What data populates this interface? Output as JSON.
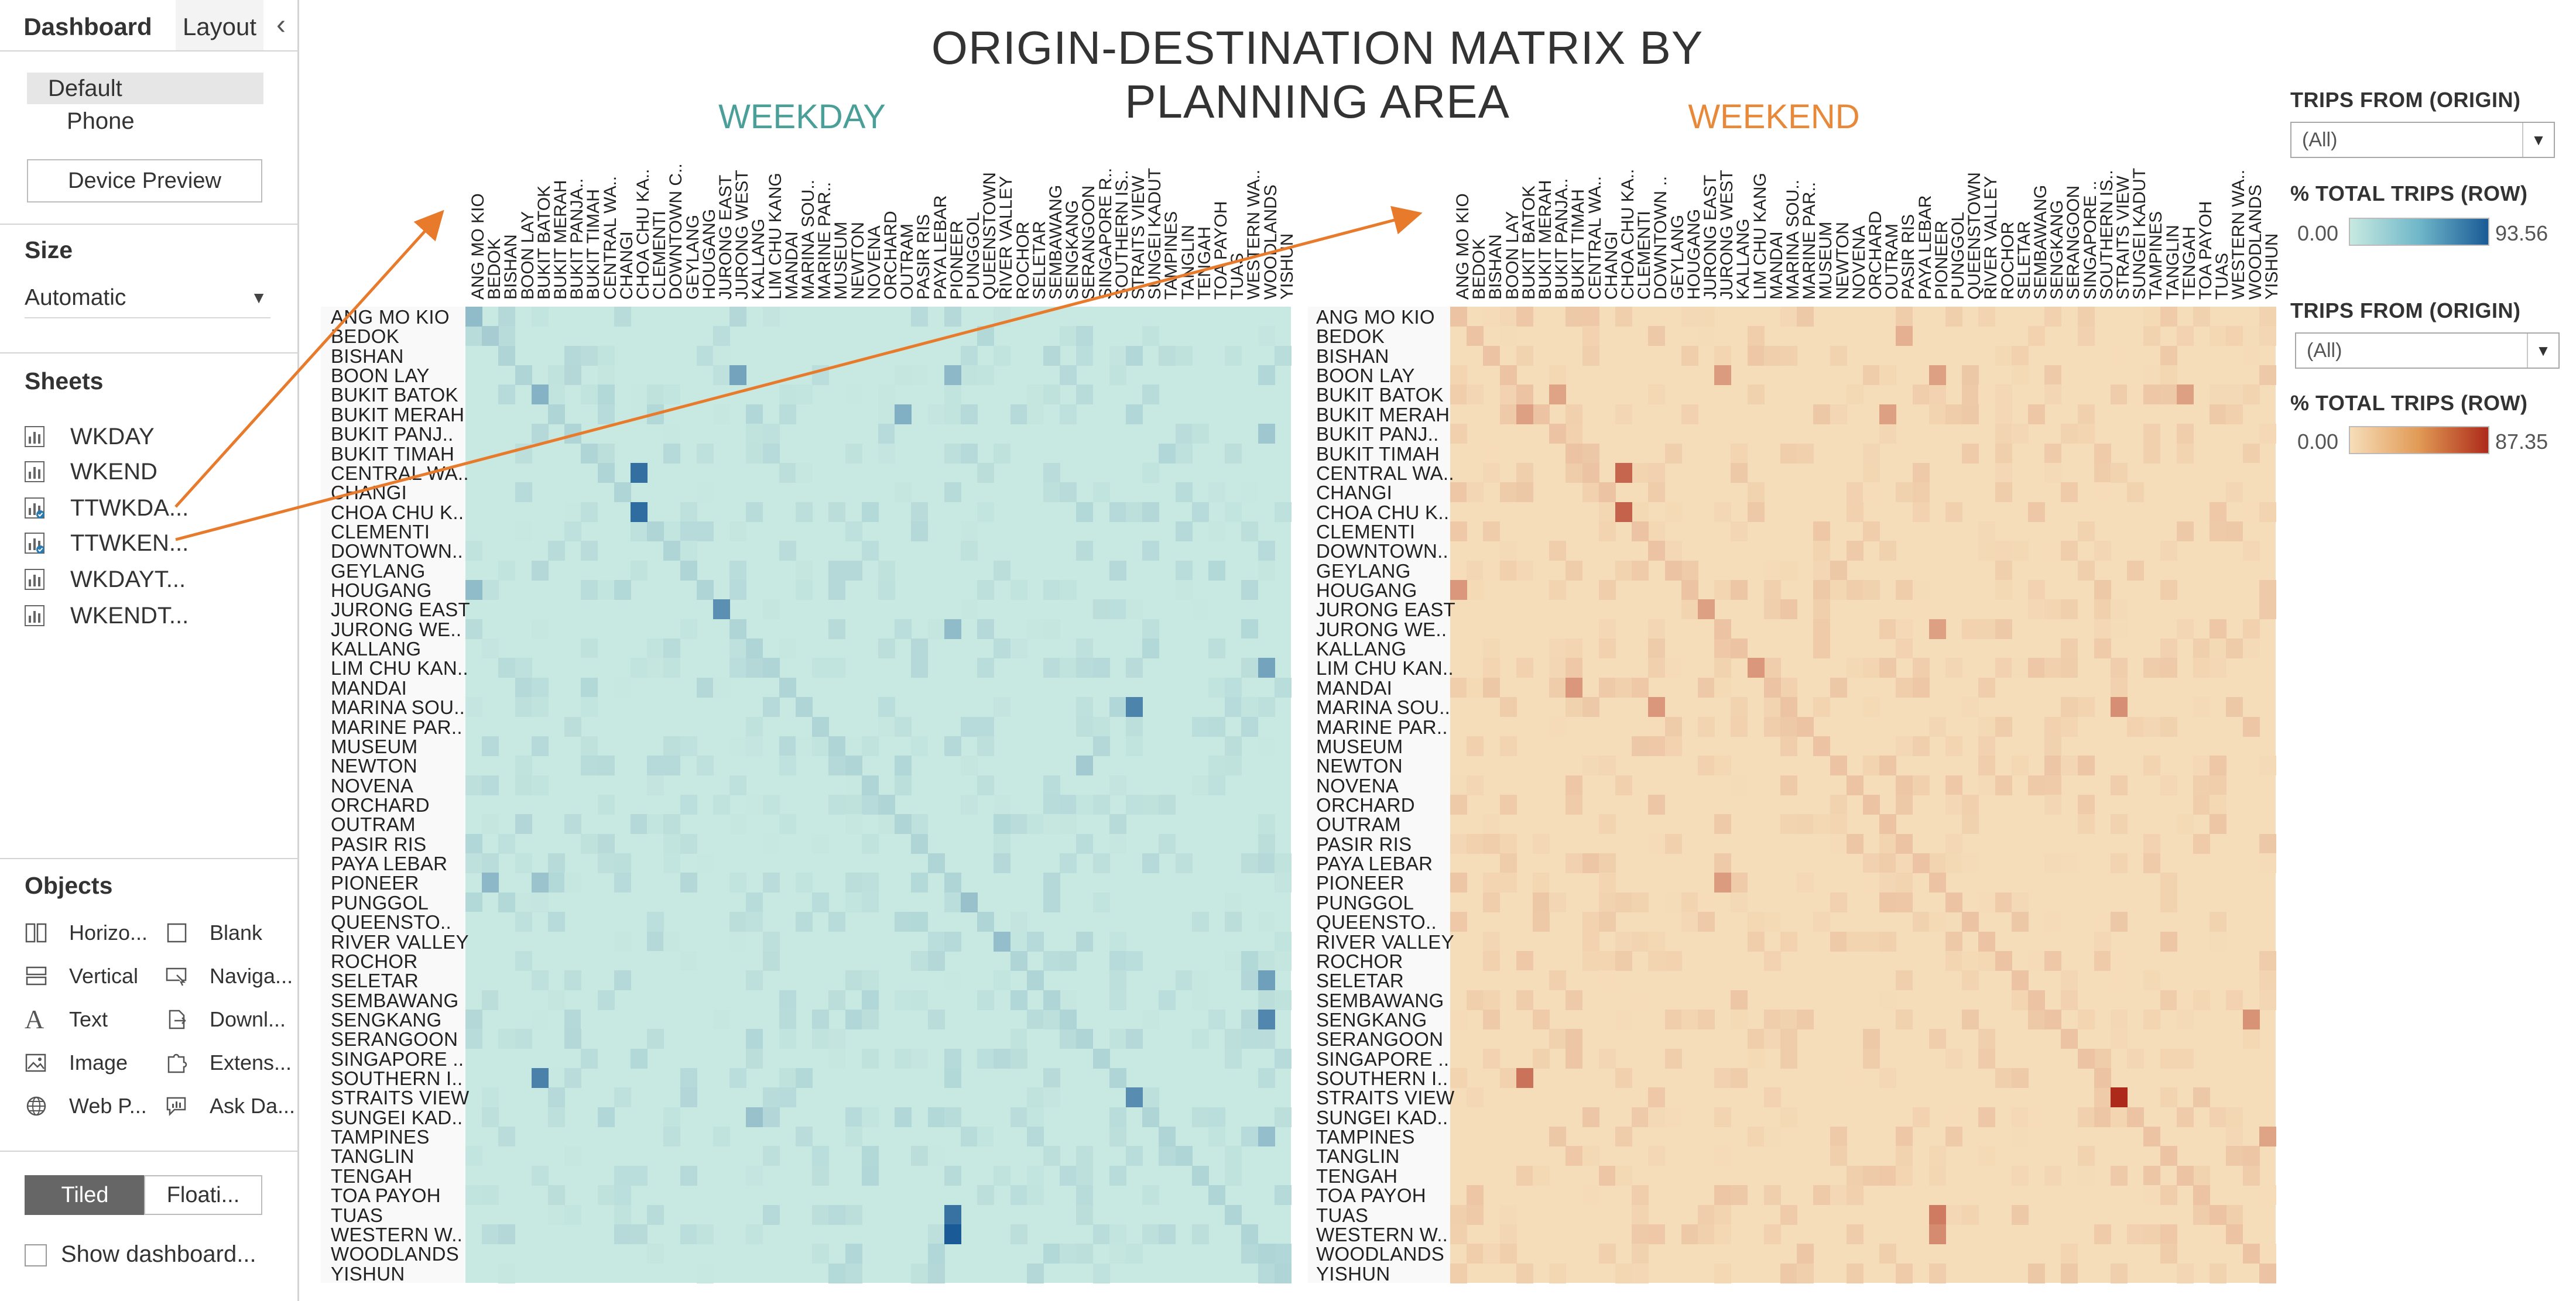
{
  "side_pane": {
    "tabs": {
      "dashboard": "Dashboard",
      "layout": "Layout"
    },
    "device": {
      "default": "Default",
      "phone": "Phone",
      "preview_button": "Device Preview"
    },
    "size": {
      "title": "Size",
      "value": "Automatic"
    },
    "sheets": {
      "title": "Sheets",
      "items": [
        "WKDAY",
        "WKEND",
        "TTWKDA...",
        "TTWKEN...",
        "WKDAYT...",
        "WKENDT..."
      ]
    },
    "objects": {
      "title": "Objects",
      "items": [
        "Horizo...",
        "Blank",
        "Vertical",
        "Naviga...",
        "Text",
        "Downl...",
        "Image",
        "Extens...",
        "Web P...",
        "Ask Da..."
      ]
    },
    "layout_buttons": {
      "tiled": "Tiled",
      "floating": "Floati..."
    },
    "show_title": "Show dashboard..."
  },
  "dashboard": {
    "title": "ORIGIN-DESTINATION MATRIX BY PLANNING AREA",
    "weekday_title": "WEEKDAY",
    "weekend_title": "WEEKEND"
  },
  "legend": {
    "weekday_filter_title": "TRIPS FROM (ORIGIN)",
    "weekday_filter_value": "(All)",
    "weekday_color_title": "% TOTAL TRIPS (ROW)",
    "weekday_min": "0.00",
    "weekday_max": "93.56",
    "weekend_filter_title": "TRIPS FROM (ORIGIN)",
    "weekend_filter_value": "(All)",
    "weekend_color_title": "% TOTAL TRIPS (ROW)",
    "weekend_min": "0.00",
    "weekend_max": "87.35"
  },
  "colors": {
    "weekday_low": "#c8e9e1",
    "weekday_high": "#1a5a96",
    "weekend_low": "#f6ddb9",
    "weekend_high": "#ad2a1a",
    "arrow": "#e87a2c"
  },
  "chart_data": [
    {
      "type": "heatmap",
      "title": "WEEKDAY",
      "rows": [
        "ANG MO KIO",
        "BEDOK",
        "BISHAN",
        "BOON LAY",
        "BUKIT BATOK",
        "BUKIT MERAH",
        "BUKIT PANJ..",
        "BUKIT TIMAH",
        "CENTRAL WA..",
        "CHANGI",
        "CHOA CHU K..",
        "CLEMENTI",
        "DOWNTOWN..",
        "GEYLANG",
        "HOUGANG",
        "JURONG EAST",
        "JURONG WE..",
        "KALLANG",
        "LIM CHU KAN..",
        "MANDAI",
        "MARINA SOU..",
        "MARINE PAR..",
        "MUSEUM",
        "NEWTON",
        "NOVENA",
        "ORCHARD",
        "OUTRAM",
        "PASIR RIS",
        "PAYA LEBAR",
        "PIONEER",
        "PUNGGOL",
        "QUEENSTO..",
        "RIVER VALLEY",
        "ROCHOR",
        "SELETAR",
        "SEMBAWANG",
        "SENGKANG",
        "SERANGOON",
        "SINGAPORE ..",
        "SOUTHERN I..",
        "STRAITS VIEW",
        "SUNGEI KAD..",
        "TAMPINES",
        "TANGLIN",
        "TENGAH",
        "TOA PAYOH",
        "TUAS",
        "WESTERN W..",
        "WOODLANDS",
        "YISHUN"
      ],
      "columns": [
        "ANG MO KIO",
        "BEDOK",
        "BISHAN",
        "BOON LAY",
        "BUKIT BATOK",
        "BUKIT MERAH",
        "BUKIT PANJA..",
        "BUKIT TIMAH",
        "CENTRAL WA..",
        "CHANGI",
        "CHOA CHU KA..",
        "CLEMENTI",
        "DOWNTOWN C..",
        "GEYLANG",
        "HOUGANG",
        "JURONG EAST",
        "JURONG WEST",
        "KALLANG",
        "LIM CHU KANG",
        "MANDAI",
        "MARINA SOU..",
        "MARINE PAR..",
        "MUSEUM",
        "NEWTON",
        "NOVENA",
        "ORCHARD",
        "OUTRAM",
        "PASIR RIS",
        "PAYA LEBAR",
        "PIONEER",
        "PUNGGOL",
        "QUEENSTOWN",
        "RIVER VALLEY",
        "ROCHOR",
        "SELETAR",
        "SEMBAWANG",
        "SENGKANG",
        "SERANGOON",
        "SINGAPORE R..",
        "SOUTHERN IS..",
        "STRAITS VIEW",
        "SUNGEI KADUT",
        "TAMPINES",
        "TANGLIN",
        "TENGAH",
        "TOA PAYOH",
        "TUAS",
        "WESTERN WA..",
        "WOODLANDS",
        "YISHUN"
      ],
      "value_range": [
        0,
        93.56
      ],
      "value_label": "% TOTAL TRIPS (ROW)",
      "highlights": [
        {
          "row": "ANG MO KIO",
          "col": "ANG MO KIO",
          "value": 30
        },
        {
          "row": "BEDOK",
          "col": "BEDOK",
          "value": 18
        },
        {
          "row": "BOON LAY",
          "col": "JURONG WEST",
          "value": 45
        },
        {
          "row": "BOON LAY",
          "col": "PIONEER",
          "value": 32
        },
        {
          "row": "BUKIT BATOK",
          "col": "BUKIT BATOK",
          "value": 36
        },
        {
          "row": "BUKIT MERAH",
          "col": "OUTRAM",
          "value": 38
        },
        {
          "row": "BUKIT PANJ..",
          "col": "WOODLANDS",
          "value": 22
        },
        {
          "row": "CENTRAL WA..",
          "col": "CHOA CHU KA..",
          "value": 80
        },
        {
          "row": "CHOA CHU K..",
          "col": "CHOA CHU KA..",
          "value": 82
        },
        {
          "row": "HOUGANG",
          "col": "ANG MO KIO",
          "value": 30
        },
        {
          "row": "JURONG EAST",
          "col": "JURONG EAST",
          "value": 58
        },
        {
          "row": "JURONG WE..",
          "col": "PIONEER",
          "value": 30
        },
        {
          "row": "LIM CHU KAN..",
          "col": "WOODLANDS",
          "value": 45
        },
        {
          "row": "MARINA SOU..",
          "col": "STRAITS VIEW",
          "value": 66
        },
        {
          "row": "NEWTON",
          "col": "SERANGOON",
          "value": 20
        },
        {
          "row": "PIONEER",
          "col": "BEDOK",
          "value": 32
        },
        {
          "row": "PIONEER",
          "col": "BUKIT BATOK",
          "value": 25
        },
        {
          "row": "PUNGGOL",
          "col": "PUNGGOL",
          "value": 26
        },
        {
          "row": "RIVER VALLEY",
          "col": "RIVER VALLEY",
          "value": 28
        },
        {
          "row": "SELETAR",
          "col": "WOODLANDS",
          "value": 48
        },
        {
          "row": "SENGKANG",
          "col": "WOODLANDS",
          "value": 64
        },
        {
          "row": "SOUTHERN I..",
          "col": "BUKIT BATOK",
          "value": 68
        },
        {
          "row": "STRAITS VIEW",
          "col": "STRAITS VIEW",
          "value": 60
        },
        {
          "row": "SUNGEI KAD..",
          "col": "KALLANG",
          "value": 26
        },
        {
          "row": "TAMPINES",
          "col": "WOODLANDS",
          "value": 28
        },
        {
          "row": "TUAS",
          "col": "PIONEER",
          "value": 78
        },
        {
          "row": "WESTERN W..",
          "col": "PIONEER",
          "value": 93.56
        }
      ]
    },
    {
      "type": "heatmap",
      "title": "WEEKEND",
      "rows": [
        "ANG MO KIO",
        "BEDOK",
        "BISHAN",
        "BOON LAY",
        "BUKIT BATOK",
        "BUKIT MERAH",
        "BUKIT PANJ..",
        "BUKIT TIMAH",
        "CENTRAL WA..",
        "CHANGI",
        "CHOA CHU K..",
        "CLEMENTI",
        "DOWNTOWN..",
        "GEYLANG",
        "HOUGANG",
        "JURONG EAST",
        "JURONG WE..",
        "KALLANG",
        "LIM CHU KAN..",
        "MANDAI",
        "MARINA SOU..",
        "MARINE PAR..",
        "MUSEUM",
        "NEWTON",
        "NOVENA",
        "ORCHARD",
        "OUTRAM",
        "PASIR RIS",
        "PAYA LEBAR",
        "PIONEER",
        "PUNGGOL",
        "QUEENSTO..",
        "RIVER VALLEY",
        "ROCHOR",
        "SELETAR",
        "SEMBAWANG",
        "SENGKANG",
        "SERANGOON",
        "SINGAPORE ..",
        "SOUTHERN I..",
        "STRAITS VIEW",
        "SUNGEI KAD..",
        "TAMPINES",
        "TANGLIN",
        "TENGAH",
        "TOA PAYOH",
        "TUAS",
        "WESTERN W..",
        "WOODLANDS",
        "YISHUN"
      ],
      "columns": [
        "ANG MO KIO",
        "BEDOK",
        "BISHAN",
        "BOON LAY",
        "BUKIT BATOK",
        "BUKIT MERAH",
        "BUKIT PANJA..",
        "BUKIT TIMAH",
        "CENTRAL WA..",
        "CHANGI",
        "CHOA CHU KA..",
        "CLEMENTI",
        "DOWNTOWN ..",
        "GEYLANG",
        "HOUGANG",
        "JURONG EAST",
        "JURONG WEST",
        "KALLANG",
        "LIM CHU KANG",
        "MANDAI",
        "MARINA SOU..",
        "MARINE PAR..",
        "MUSEUM",
        "NEWTON",
        "NOVENA",
        "ORCHARD",
        "OUTRAM",
        "PASIR RIS",
        "PAYA LEBAR",
        "PIONEER",
        "PUNGGOL",
        "QUEENSTOWN",
        "RIVER VALLEY",
        "ROCHOR",
        "SELETAR",
        "SEMBAWANG",
        "SENGKANG",
        "SERANGOON",
        "SINGAPORE ..",
        "SOUTHERN IS..",
        "STRAITS VIEW",
        "SUNGEI KADUT",
        "TAMPINES",
        "TANGLIN",
        "TENGAH",
        "TOA PAYOH",
        "TUAS",
        "WESTERN WA..",
        "WOODLANDS",
        "YISHUN"
      ],
      "value_range": [
        0,
        87.35
      ],
      "value_label": "% TOTAL TRIPS (ROW)",
      "highlights": [
        {
          "row": "BEDOK",
          "col": "PASIR RIS",
          "value": 22
        },
        {
          "row": "BOON LAY",
          "col": "JURONG WEST",
          "value": 32
        },
        {
          "row": "BOON LAY",
          "col": "PIONEER",
          "value": 30
        },
        {
          "row": "BUKIT BATOK",
          "col": "BUKIT PANJA..",
          "value": 28
        },
        {
          "row": "BUKIT BATOK",
          "col": "TENGAH",
          "value": 30
        },
        {
          "row": "BUKIT MERAH",
          "col": "BUKIT BATOK",
          "value": 30
        },
        {
          "row": "BUKIT MERAH",
          "col": "OUTRAM",
          "value": 30
        },
        {
          "row": "CENTRAL WA..",
          "col": "CHOA CHU KA..",
          "value": 58
        },
        {
          "row": "CHOA CHU K..",
          "col": "CHOA CHU KA..",
          "value": 60
        },
        {
          "row": "HOUGANG",
          "col": "ANG MO KIO",
          "value": 34
        },
        {
          "row": "JURONG EAST",
          "col": "JURONG EAST",
          "value": 30
        },
        {
          "row": "JURONG WE..",
          "col": "PIONEER",
          "value": 30
        },
        {
          "row": "LIM CHU KAN..",
          "col": "LIM CHU KANG",
          "value": 34
        },
        {
          "row": "MANDAI",
          "col": "BUKIT TIMAH",
          "value": 34
        },
        {
          "row": "MARINA SOU..",
          "col": "DOWNTOWN ..",
          "value": 34
        },
        {
          "row": "MARINA SOU..",
          "col": "STRAITS VIEW",
          "value": 38
        },
        {
          "row": "PIONEER",
          "col": "JURONG WEST",
          "value": 32
        },
        {
          "row": "SENGKANG",
          "col": "WOODLANDS",
          "value": 36
        },
        {
          "row": "SOUTHERN I..",
          "col": "BUKIT BATOK",
          "value": 52
        },
        {
          "row": "STRAITS VIEW",
          "col": "STRAITS VIEW",
          "value": 87.35
        },
        {
          "row": "TAMPINES",
          "col": "YISHUN",
          "value": 28
        },
        {
          "row": "TUAS",
          "col": "PIONEER",
          "value": 48
        },
        {
          "row": "WESTERN W..",
          "col": "PIONEER",
          "value": 40
        }
      ]
    }
  ]
}
